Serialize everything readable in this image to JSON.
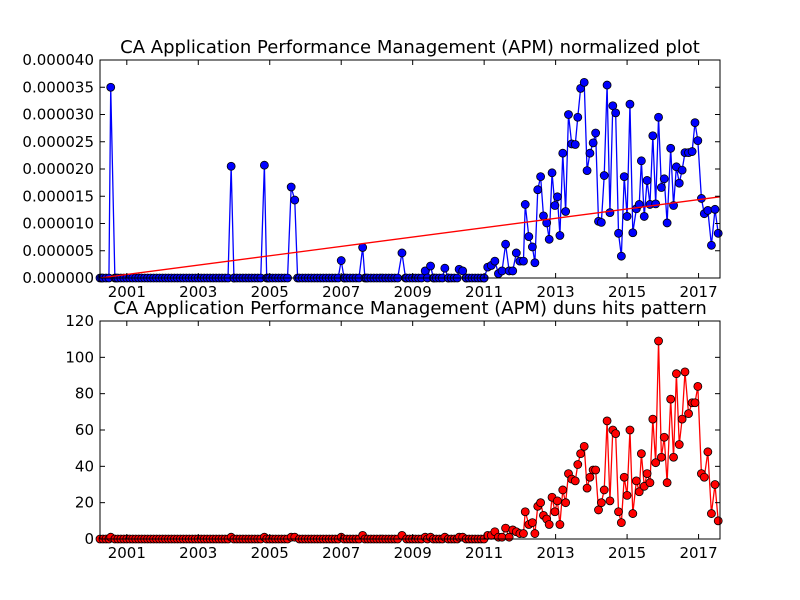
{
  "chart_data": [
    {
      "type": "line",
      "title": "CA Application Performance Management (APM) normalized plot",
      "xlabel": "",
      "ylabel": "",
      "xlim": [
        2000.25,
        2017.6
      ],
      "ylim": [
        0,
        4e-05
      ],
      "x_ticks": [
        2001,
        2003,
        2005,
        2007,
        2009,
        2011,
        2013,
        2015,
        2017
      ],
      "y_ticks": [
        "0.000000",
        "0.000005",
        "0.000010",
        "0.000015",
        "0.000020",
        "0.000025",
        "0.000030",
        "0.000035",
        "0.000040"
      ],
      "y_tick_values": [
        0,
        5e-06,
        1e-05,
        1.5e-05,
        2e-05,
        2.5e-05,
        3e-05,
        3.5e-05,
        4e-05
      ],
      "series": [
        {
          "color": "#0000ff",
          "marker_color": "#0000ff",
          "points": [
            [
              2000.3,
              0
            ],
            [
              2000.55,
              3.5e-05
            ],
            [
              2000.7,
              0
            ],
            [
              2003.92,
              2.05e-05
            ],
            [
              2004.0,
              0
            ],
            [
              2004.85,
              2.07e-05
            ],
            [
              2004.95,
              0
            ],
            [
              2005.6,
              1.67e-05
            ],
            [
              2005.7,
              1.43e-05
            ],
            [
              2005.78,
              0
            ],
            [
              2007.0,
              3.2e-06
            ],
            [
              2007.1,
              0
            ],
            [
              2007.6,
              5.6e-06
            ],
            [
              2007.7,
              0
            ],
            [
              2008.7,
              4.6e-06
            ],
            [
              2008.8,
              0
            ],
            [
              2009.35,
              1.3e-06
            ],
            [
              2009.5,
              2.2e-06
            ],
            [
              2009.6,
              0
            ],
            [
              2009.9,
              1.8e-06
            ],
            [
              2010.0,
              0
            ],
            [
              2010.3,
              1.6e-06
            ],
            [
              2010.4,
              1.3e-06
            ],
            [
              2010.5,
              0
            ],
            [
              2011.0,
              0
            ],
            [
              2011.1,
              2e-06
            ],
            [
              2011.2,
              2.3e-06
            ],
            [
              2011.3,
              3.1e-06
            ],
            [
              2011.4,
              8e-07
            ],
            [
              2011.5,
              1.3e-06
            ],
            [
              2011.6,
              6.2e-06
            ],
            [
              2011.7,
              1.3e-06
            ],
            [
              2011.8,
              1.3e-06
            ],
            [
              2011.9,
              4.6e-06
            ],
            [
              2012.0,
              3.1e-06
            ],
            [
              2012.1,
              3.1e-06
            ],
            [
              2012.15,
              1.35e-05
            ],
            [
              2012.25,
              7.6e-06
            ],
            [
              2012.35,
              5.7e-06
            ],
            [
              2012.42,
              2.8e-06
            ],
            [
              2012.5,
              1.62e-05
            ],
            [
              2012.58,
              1.86e-05
            ],
            [
              2012.66,
              1.14e-05
            ],
            [
              2012.75,
              1.01e-05
            ],
            [
              2012.82,
              7.1e-06
            ],
            [
              2012.9,
              1.93e-05
            ],
            [
              2012.98,
              1.33e-05
            ],
            [
              2013.05,
              1.49e-05
            ],
            [
              2013.12,
              7.8e-06
            ],
            [
              2013.2,
              2.29e-05
            ],
            [
              2013.28,
              1.22e-05
            ],
            [
              2013.36,
              3e-05
            ],
            [
              2013.45,
              2.46e-05
            ],
            [
              2013.55,
              2.45e-05
            ],
            [
              2013.62,
              2.95e-05
            ],
            [
              2013.7,
              3.48e-05
            ],
            [
              2013.8,
              3.59e-05
            ],
            [
              2013.88,
              1.97e-05
            ],
            [
              2013.96,
              2.29e-05
            ],
            [
              2014.05,
              2.48e-05
            ],
            [
              2014.12,
              2.66e-05
            ],
            [
              2014.2,
              1.04e-05
            ],
            [
              2014.28,
              1.02e-05
            ],
            [
              2014.36,
              1.88e-05
            ],
            [
              2014.44,
              3.54e-05
            ],
            [
              2014.52,
              1.2e-05
            ],
            [
              2014.6,
              3.16e-05
            ],
            [
              2014.68,
              3.03e-05
            ],
            [
              2014.76,
              8.2e-06
            ],
            [
              2014.84,
              4e-06
            ],
            [
              2014.92,
              1.86e-05
            ],
            [
              2015.0,
              1.13e-05
            ],
            [
              2015.08,
              3.19e-05
            ],
            [
              2015.16,
              8.3e-06
            ],
            [
              2015.26,
              1.27e-05
            ],
            [
              2015.34,
              1.35e-05
            ],
            [
              2015.4,
              2.15e-05
            ],
            [
              2015.48,
              1.13e-05
            ],
            [
              2015.56,
              1.79e-05
            ],
            [
              2015.64,
              1.35e-05
            ],
            [
              2015.72,
              2.61e-05
            ],
            [
              2015.8,
              1.36e-05
            ],
            [
              2015.88,
              2.95e-05
            ],
            [
              2015.96,
              1.66e-05
            ],
            [
              2016.04,
              1.82e-05
            ],
            [
              2016.12,
              1.01e-05
            ],
            [
              2016.22,
              2.38e-05
            ],
            [
              2016.3,
              1.33e-05
            ],
            [
              2016.38,
              2.04e-05
            ],
            [
              2016.46,
              1.74e-05
            ],
            [
              2016.54,
              1.98e-05
            ],
            [
              2016.62,
              2.3e-05
            ],
            [
              2016.72,
              2.3e-05
            ],
            [
              2016.82,
              2.32e-05
            ],
            [
              2016.9,
              2.85e-05
            ],
            [
              2016.98,
              2.52e-05
            ],
            [
              2017.08,
              1.46e-05
            ],
            [
              2017.16,
              1.18e-05
            ],
            [
              2017.26,
              1.24e-05
            ],
            [
              2017.36,
              6e-06
            ],
            [
              2017.46,
              1.26e-05
            ],
            [
              2017.55,
              8.2e-06
            ]
          ],
          "zero_markers": {
            "from": 2000.25,
            "to": 2011.0,
            "step": 0.0833
          }
        },
        {
          "color": "#ff0000",
          "kind": "trend",
          "points": [
            [
              2000.25,
              0
            ],
            [
              2017.6,
              1.49e-05
            ]
          ]
        }
      ]
    },
    {
      "type": "line",
      "title": "CA Application Performance Management (APM) duns hits pattern",
      "xlabel": "",
      "ylabel": "",
      "xlim": [
        2000.25,
        2017.6
      ],
      "ylim": [
        0,
        120
      ],
      "x_ticks": [
        2001,
        2003,
        2005,
        2007,
        2009,
        2011,
        2013,
        2015,
        2017
      ],
      "y_ticks": [
        "0",
        "20",
        "40",
        "60",
        "80",
        "100",
        "120"
      ],
      "y_tick_values": [
        0,
        20,
        40,
        60,
        80,
        100,
        120
      ],
      "series": [
        {
          "color": "#ff0000",
          "marker_color": "#ff0000",
          "points": [
            [
              2000.55,
              1
            ],
            [
              2003.92,
              1
            ],
            [
              2004.85,
              1
            ],
            [
              2005.6,
              1
            ],
            [
              2005.7,
              1
            ],
            [
              2007.0,
              1
            ],
            [
              2007.6,
              2
            ],
            [
              2008.7,
              2
            ],
            [
              2009.35,
              1
            ],
            [
              2009.5,
              1
            ],
            [
              2009.9,
              1
            ],
            [
              2010.3,
              1
            ],
            [
              2010.4,
              1
            ],
            [
              2011.1,
              2
            ],
            [
              2011.2,
              2
            ],
            [
              2011.3,
              4
            ],
            [
              2011.4,
              1
            ],
            [
              2011.5,
              1
            ],
            [
              2011.6,
              6
            ],
            [
              2011.7,
              1
            ],
            [
              2011.8,
              5
            ],
            [
              2011.9,
              4
            ],
            [
              2012.0,
              3
            ],
            [
              2012.1,
              3
            ],
            [
              2012.15,
              15
            ],
            [
              2012.25,
              8
            ],
            [
              2012.35,
              9
            ],
            [
              2012.42,
              3
            ],
            [
              2012.5,
              18
            ],
            [
              2012.58,
              20
            ],
            [
              2012.66,
              13
            ],
            [
              2012.75,
              11
            ],
            [
              2012.82,
              8
            ],
            [
              2012.9,
              23
            ],
            [
              2012.98,
              15
            ],
            [
              2013.05,
              21
            ],
            [
              2013.12,
              8
            ],
            [
              2013.2,
              27
            ],
            [
              2013.28,
              20
            ],
            [
              2013.36,
              36
            ],
            [
              2013.45,
              33
            ],
            [
              2013.55,
              32
            ],
            [
              2013.62,
              41
            ],
            [
              2013.7,
              47
            ],
            [
              2013.8,
              51
            ],
            [
              2013.88,
              28
            ],
            [
              2013.96,
              34
            ],
            [
              2014.05,
              38
            ],
            [
              2014.12,
              38
            ],
            [
              2014.2,
              16
            ],
            [
              2014.28,
              20
            ],
            [
              2014.36,
              27
            ],
            [
              2014.44,
              65
            ],
            [
              2014.52,
              21
            ],
            [
              2014.6,
              60
            ],
            [
              2014.68,
              58
            ],
            [
              2014.76,
              15
            ],
            [
              2014.84,
              9
            ],
            [
              2014.92,
              34
            ],
            [
              2015.0,
              24
            ],
            [
              2015.08,
              60
            ],
            [
              2015.16,
              14
            ],
            [
              2015.26,
              32
            ],
            [
              2015.34,
              26
            ],
            [
              2015.4,
              47
            ],
            [
              2015.48,
              29
            ],
            [
              2015.56,
              36
            ],
            [
              2015.64,
              31
            ],
            [
              2015.72,
              66
            ],
            [
              2015.8,
              42
            ],
            [
              2015.88,
              109
            ],
            [
              2015.96,
              45
            ],
            [
              2016.04,
              56
            ],
            [
              2016.12,
              31
            ],
            [
              2016.22,
              77
            ],
            [
              2016.3,
              45
            ],
            [
              2016.38,
              91
            ],
            [
              2016.46,
              52
            ],
            [
              2016.54,
              66
            ],
            [
              2016.62,
              92
            ],
            [
              2016.72,
              69
            ],
            [
              2016.82,
              75
            ],
            [
              2016.9,
              75
            ],
            [
              2016.98,
              84
            ],
            [
              2017.08,
              36
            ],
            [
              2017.16,
              34
            ],
            [
              2017.26,
              48
            ],
            [
              2017.36,
              14
            ],
            [
              2017.46,
              30
            ],
            [
              2017.55,
              10
            ]
          ],
          "zero_markers": {
            "from": 2000.25,
            "to": 2011.0,
            "step": 0.0833
          }
        }
      ]
    }
  ]
}
